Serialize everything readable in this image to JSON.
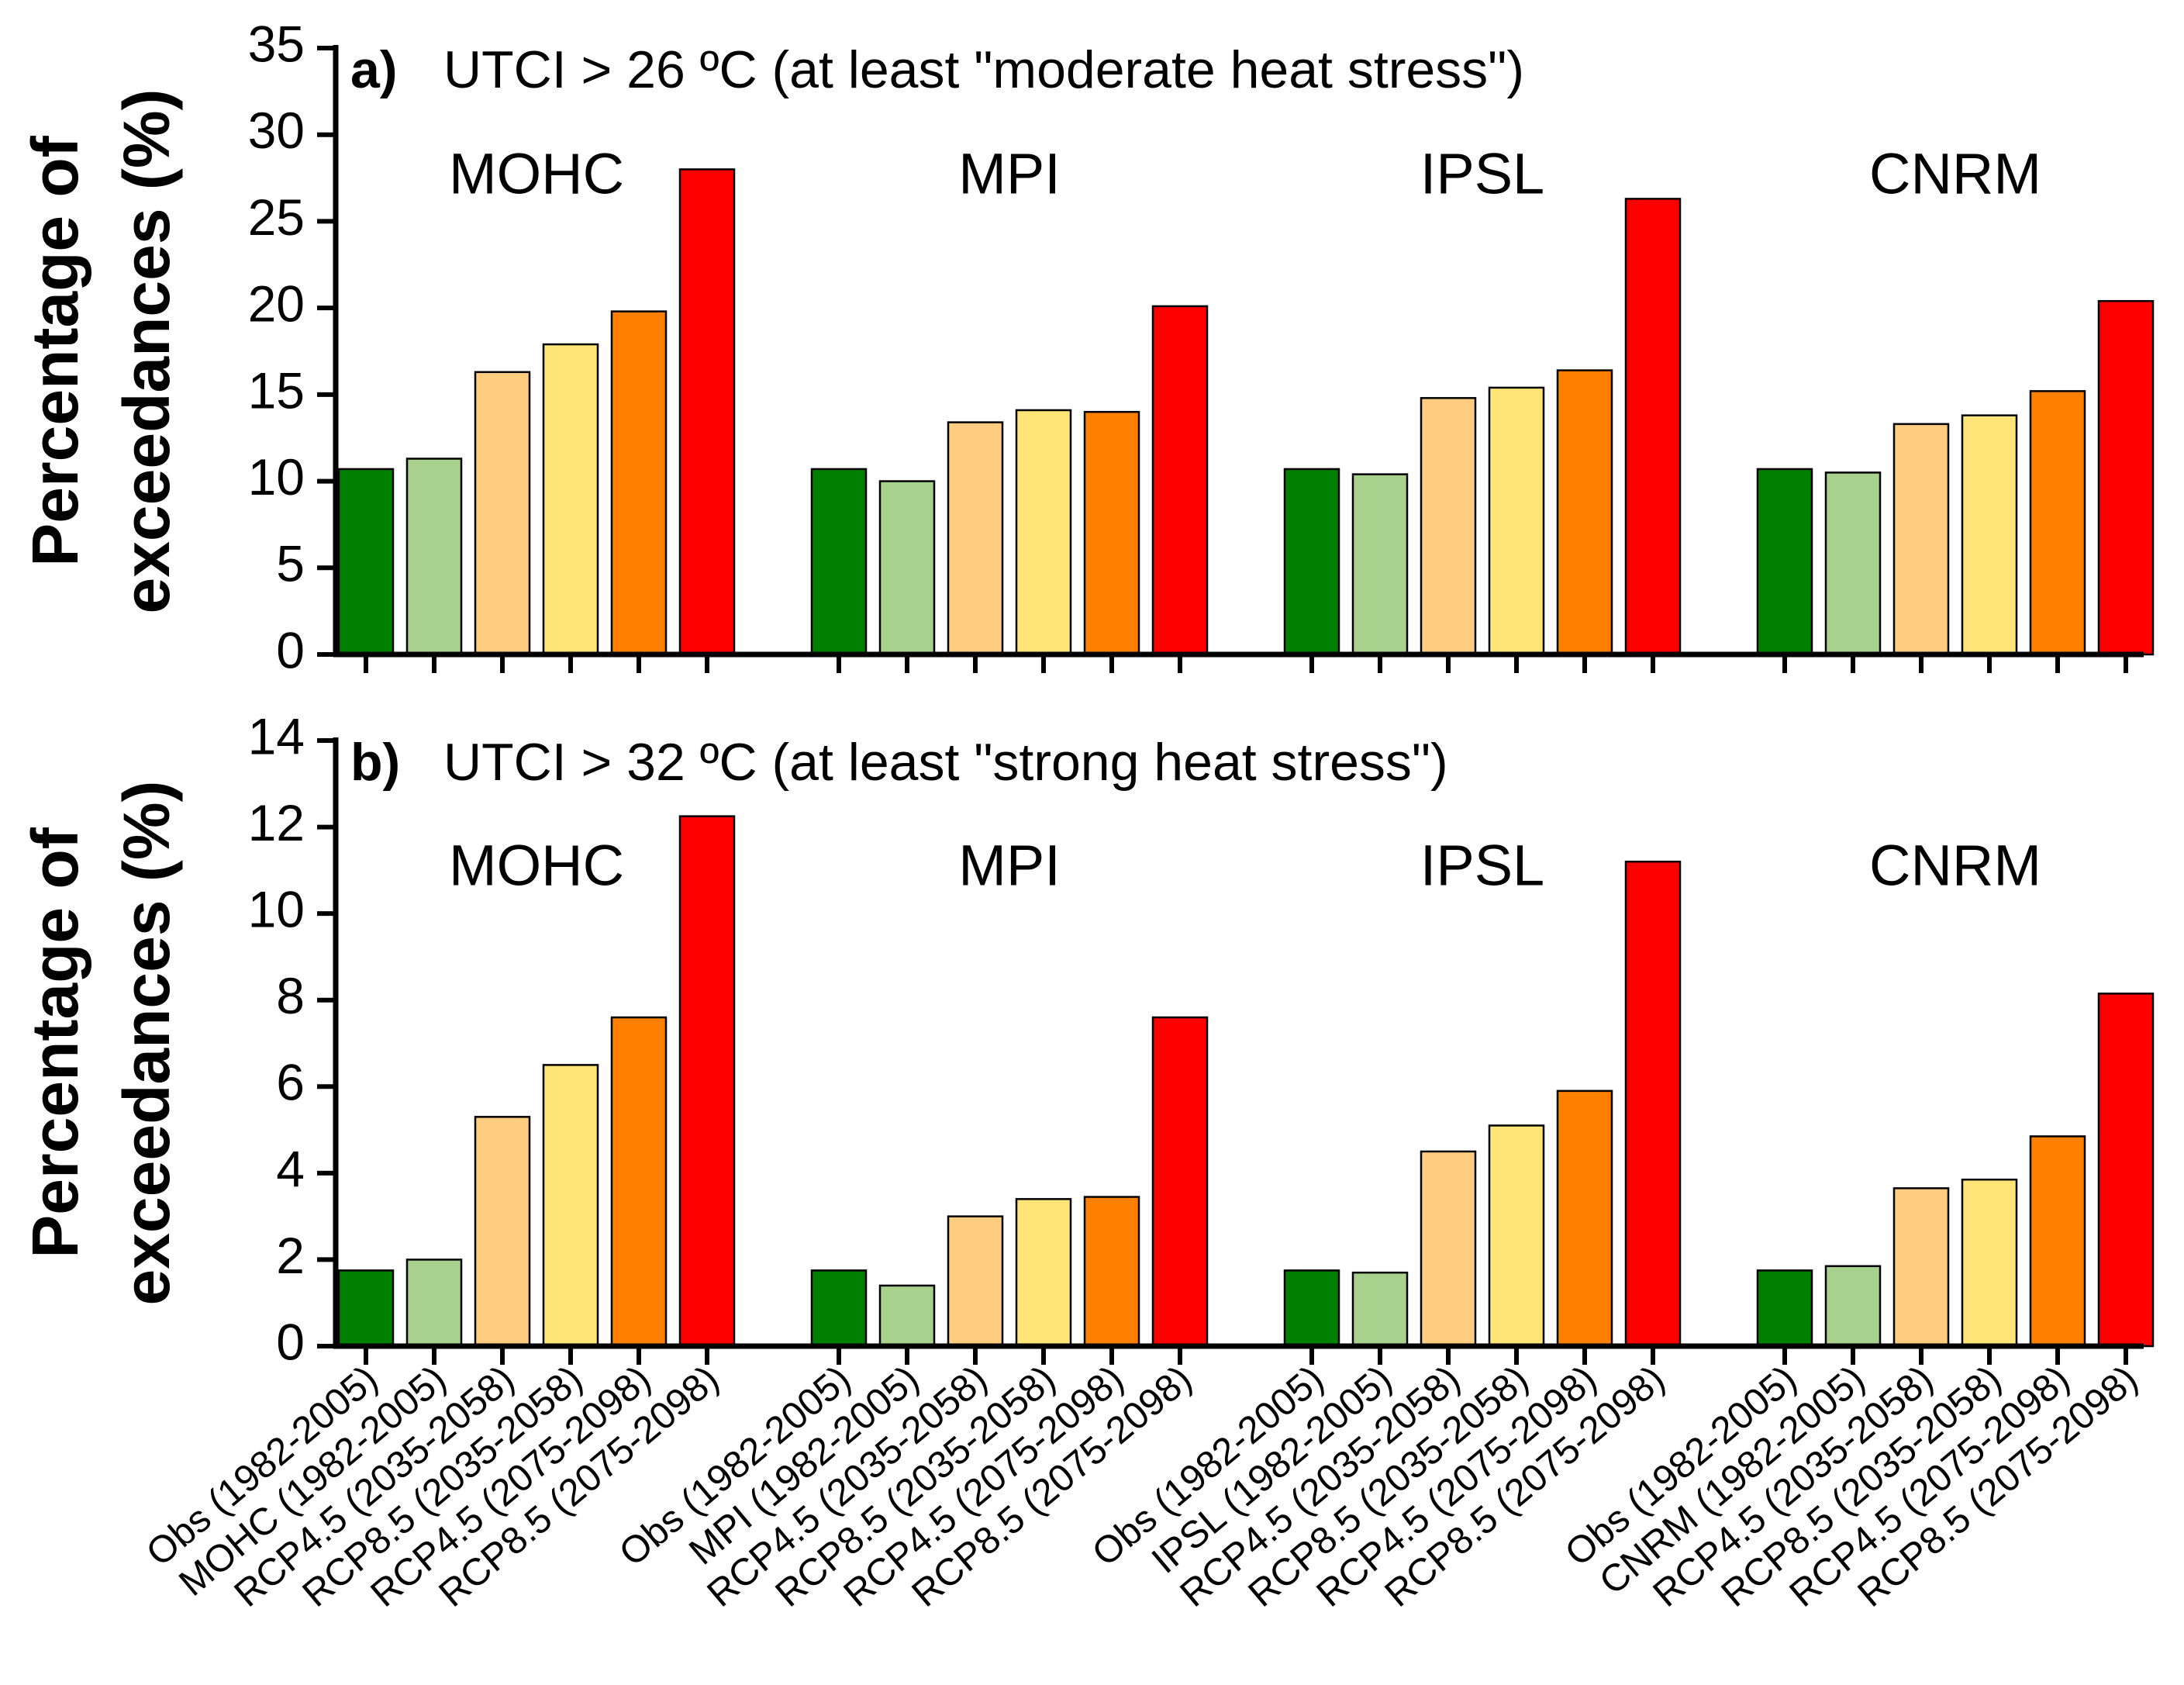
{
  "chart_data": [
    {
      "type": "bar",
      "panel_letter": "a)",
      "title": "UTCI > 26 ºC (at least \"moderate heat stress\")",
      "ylabel_lines": [
        "Percentage of",
        "exceedances (%)"
      ],
      "ylim": [
        0,
        35
      ],
      "yticks": [
        "0",
        "5",
        "10",
        "15",
        "20",
        "25",
        "30",
        "35"
      ],
      "groups": [
        {
          "name": "MOHC",
          "categories": [
            "Obs (1982-2005)",
            "MOHC (1982-2005)",
            "RCP4.5 (2035-2058)",
            "RCP8.5 (2035-2058)",
            "RCP4.5 (2075-2098)",
            "RCP8.5 (2075-2098)"
          ],
          "values": [
            10.7,
            11.3,
            16.3,
            17.9,
            19.8,
            28.0
          ]
        },
        {
          "name": "MPI",
          "categories": [
            "Obs (1982-2005)",
            "MPI (1982-2005)",
            "RCP4.5 (2035-2058)",
            "RCP8.5 (2035-2058)",
            "RCP4.5 (2075-2098)",
            "RCP8.5 (2075-2098)"
          ],
          "values": [
            10.7,
            10.0,
            13.4,
            14.1,
            14.0,
            20.1
          ]
        },
        {
          "name": "IPSL",
          "categories": [
            "Obs (1982-2005)",
            "IPSL (1982-2005)",
            "RCP4.5 (2035-2058)",
            "RCP8.5 (2035-2058)",
            "RCP4.5 (2075-2098)",
            "RCP8.5 (2075-2098)"
          ],
          "values": [
            10.7,
            10.4,
            14.8,
            15.4,
            16.4,
            26.3
          ]
        },
        {
          "name": "CNRM",
          "categories": [
            "Obs (1982-2005)",
            "CNRM (1982-2005)",
            "RCP4.5 (2035-2058)",
            "RCP8.5 (2035-2058)",
            "RCP4.5 (2075-2098)",
            "RCP8.5 (2075-2098)"
          ],
          "values": [
            10.7,
            10.5,
            13.3,
            13.8,
            15.2,
            20.4
          ]
        }
      ]
    },
    {
      "type": "bar",
      "panel_letter": "b)",
      "title": "UTCI > 32 ºC (at least \"strong heat stress\")",
      "ylabel_lines": [
        "Percentage of",
        "exceedances (%)"
      ],
      "ylim": [
        0,
        14
      ],
      "yticks": [
        "0",
        "2",
        "4",
        "6",
        "8",
        "10",
        "12",
        "14"
      ],
      "groups": [
        {
          "name": "MOHC",
          "categories": [
            "Obs (1982-2005)",
            "MOHC (1982-2005)",
            "RCP4.5 (2035-2058)",
            "RCP8.5 (2035-2058)",
            "RCP4.5 (2075-2098)",
            "RCP8.5 (2075-2098)"
          ],
          "values": [
            1.75,
            2.0,
            5.3,
            6.5,
            7.6,
            12.25
          ]
        },
        {
          "name": "MPI",
          "categories": [
            "Obs (1982-2005)",
            "MPI (1982-2005)",
            "RCP4.5 (2035-2058)",
            "RCP8.5 (2035-2058)",
            "RCP4.5 (2075-2098)",
            "RCP8.5 (2075-2098)"
          ],
          "values": [
            1.75,
            1.4,
            3.0,
            3.4,
            3.45,
            7.6
          ]
        },
        {
          "name": "IPSL",
          "categories": [
            "Obs (1982-2005)",
            "IPSL (1982-2005)",
            "RCP4.5 (2035-2058)",
            "RCP8.5 (2035-2058)",
            "RCP4.5 (2075-2098)",
            "RCP8.5 (2075-2098)"
          ],
          "values": [
            1.75,
            1.7,
            4.5,
            5.1,
            5.9,
            11.2
          ]
        },
        {
          "name": "CNRM",
          "categories": [
            "Obs (1982-2005)",
            "CNRM (1982-2005)",
            "RCP4.5 (2035-2058)",
            "RCP8.5 (2035-2058)",
            "RCP4.5 (2075-2098)",
            "RCP8.5 (2075-2098)"
          ],
          "values": [
            1.75,
            1.85,
            3.65,
            3.85,
            4.85,
            8.15
          ]
        }
      ]
    }
  ],
  "colors": {
    "Obs": "#008000",
    "Historical": "#a9d18e",
    "RCP4.5 mid": "#ffcc80",
    "RCP8.5 mid": "#ffe477",
    "RCP4.5 end": "#ff8000",
    "RCP8.5 end": "#ff0000"
  }
}
